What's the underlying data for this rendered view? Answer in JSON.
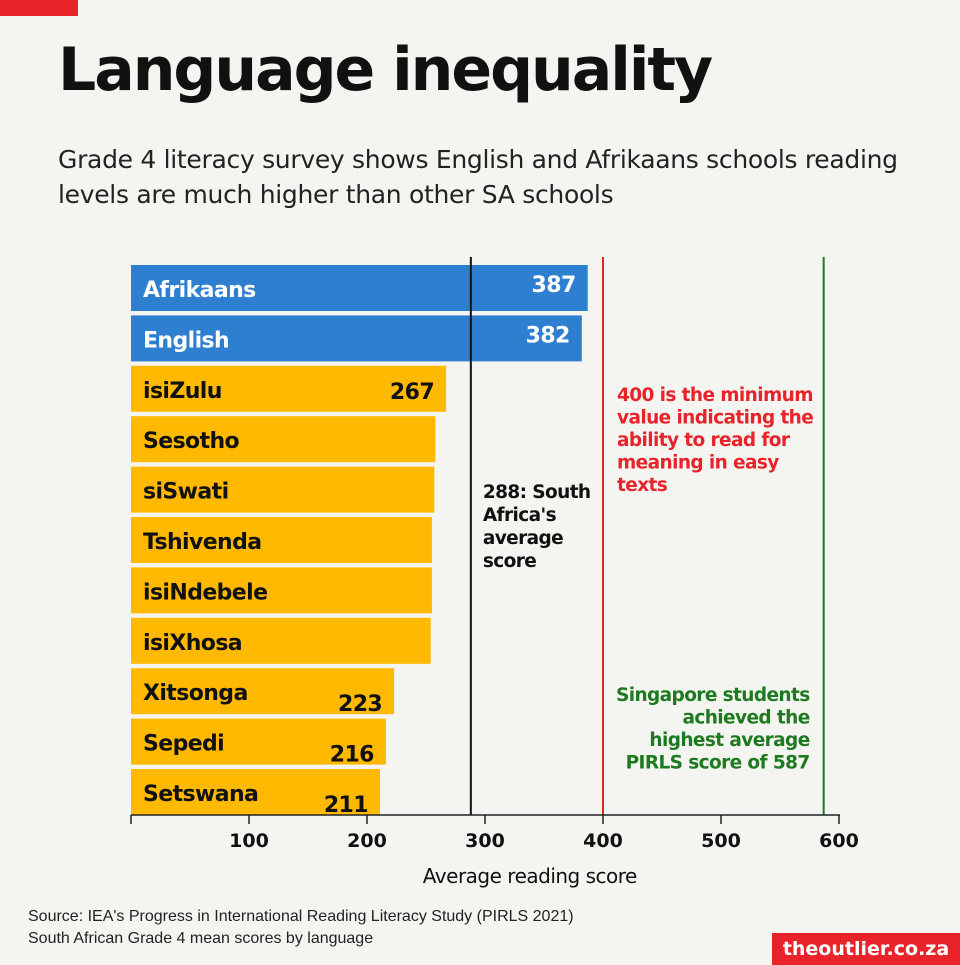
{
  "header": {
    "title": "Language inequality",
    "subtitle": "Grade 4 literacy survey shows English and Afrikaans schools reading levels are much higher than other SA schools"
  },
  "colors": {
    "accent": "#e8232a",
    "high_bar": "#2f7fd1",
    "low_bar": "#ffb900",
    "average_line": "#111111",
    "minimum_line": "#e8232a",
    "singapore_line": "#1e7a1e"
  },
  "chart_data": {
    "type": "bar",
    "orientation": "horizontal",
    "xlabel": "Average reading score",
    "xlim": [
      0,
      600
    ],
    "xticks": [
      100,
      200,
      300,
      400,
      500,
      600
    ],
    "categories": [
      "Afrikaans",
      "English",
      "isiZulu",
      "Sesotho",
      "siSwati",
      "Tshivenda",
      "isiNdebele",
      "isiXhosa",
      "Xitsonga",
      "Sepedi",
      "Setswana"
    ],
    "values": [
      387,
      382,
      267,
      258,
      257,
      255,
      255,
      254,
      223,
      216,
      211
    ],
    "value_labels": [
      "387",
      "382",
      "267",
      "",
      "",
      "",
      "",
      "",
      "223",
      "216",
      "211"
    ],
    "reference_lines": [
      {
        "name": "average",
        "value": 288,
        "label_lines": [
          "288: South",
          "Africa's",
          "average",
          "score"
        ]
      },
      {
        "name": "minimum",
        "value": 400,
        "label_lines": [
          "400 is the minimum",
          "value indicating the",
          "ability to read for",
          "meaning in easy",
          "texts"
        ]
      },
      {
        "name": "singapore",
        "value": 587,
        "label_lines": [
          "Singapore students",
          "achieved the",
          "highest average",
          "PIRLS score of 587"
        ]
      }
    ]
  },
  "footer": {
    "source_line1": "Source: IEA's Progress in International Reading Literacy Study (PIRLS 2021)",
    "source_line2": "South African Grade 4 mean scores by language",
    "brand": "theoutlier.co.za"
  }
}
